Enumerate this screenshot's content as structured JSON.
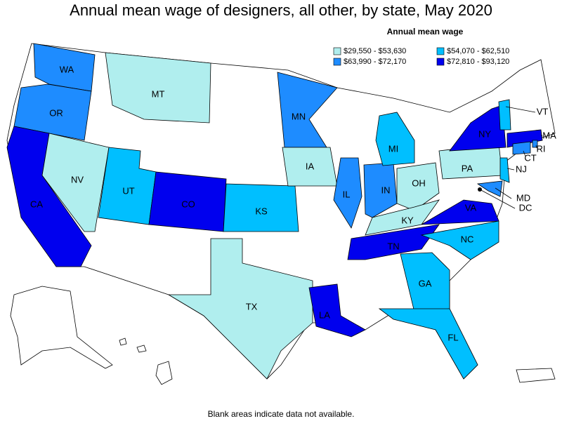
{
  "title": "Annual mean wage of designers, all other, by state, May 2020",
  "legend": {
    "title": "Annual mean wage",
    "items": [
      {
        "label": "$29,550 - $53,630",
        "color": "#b0eeee"
      },
      {
        "label": "$54,070 - $62,510",
        "color": "#00bfff"
      },
      {
        "label": "$63,990 - $72,170",
        "color": "#1e8cff"
      },
      {
        "label": "$72,810 - $93,120",
        "color": "#0000ee"
      }
    ]
  },
  "states": [
    {
      "label": "WA",
      "bin": 2
    },
    {
      "label": "OR",
      "bin": 2
    },
    {
      "label": "CA",
      "bin": 3
    },
    {
      "label": "NV",
      "bin": 0
    },
    {
      "label": "UT",
      "bin": 1
    },
    {
      "label": "CO",
      "bin": 3
    },
    {
      "label": "MT",
      "bin": 0
    },
    {
      "label": "KS",
      "bin": 1
    },
    {
      "label": "TX",
      "bin": 0
    },
    {
      "label": "MN",
      "bin": 2
    },
    {
      "label": "IA",
      "bin": 0
    },
    {
      "label": "IL",
      "bin": 2
    },
    {
      "label": "IN",
      "bin": 2
    },
    {
      "label": "OH",
      "bin": 0
    },
    {
      "label": "KY",
      "bin": 0
    },
    {
      "label": "TN",
      "bin": 3
    },
    {
      "label": "MI",
      "bin": 1
    },
    {
      "label": "NC",
      "bin": 1
    },
    {
      "label": "GA",
      "bin": 1
    },
    {
      "label": "FL",
      "bin": 1
    },
    {
      "label": "LA",
      "bin": 3
    },
    {
      "label": "VA",
      "bin": 3
    },
    {
      "label": "PA",
      "bin": 0
    },
    {
      "label": "NY",
      "bin": 3
    },
    {
      "label": "VT",
      "bin": 1
    },
    {
      "label": "MA",
      "bin": 3
    },
    {
      "label": "RI",
      "bin": 2
    },
    {
      "label": "CT",
      "bin": 2
    },
    {
      "label": "NJ",
      "bin": 1
    },
    {
      "label": "MD",
      "bin": 2
    },
    {
      "label": "DC",
      "bin": 3
    }
  ],
  "note": "Blank areas indicate data not available."
}
